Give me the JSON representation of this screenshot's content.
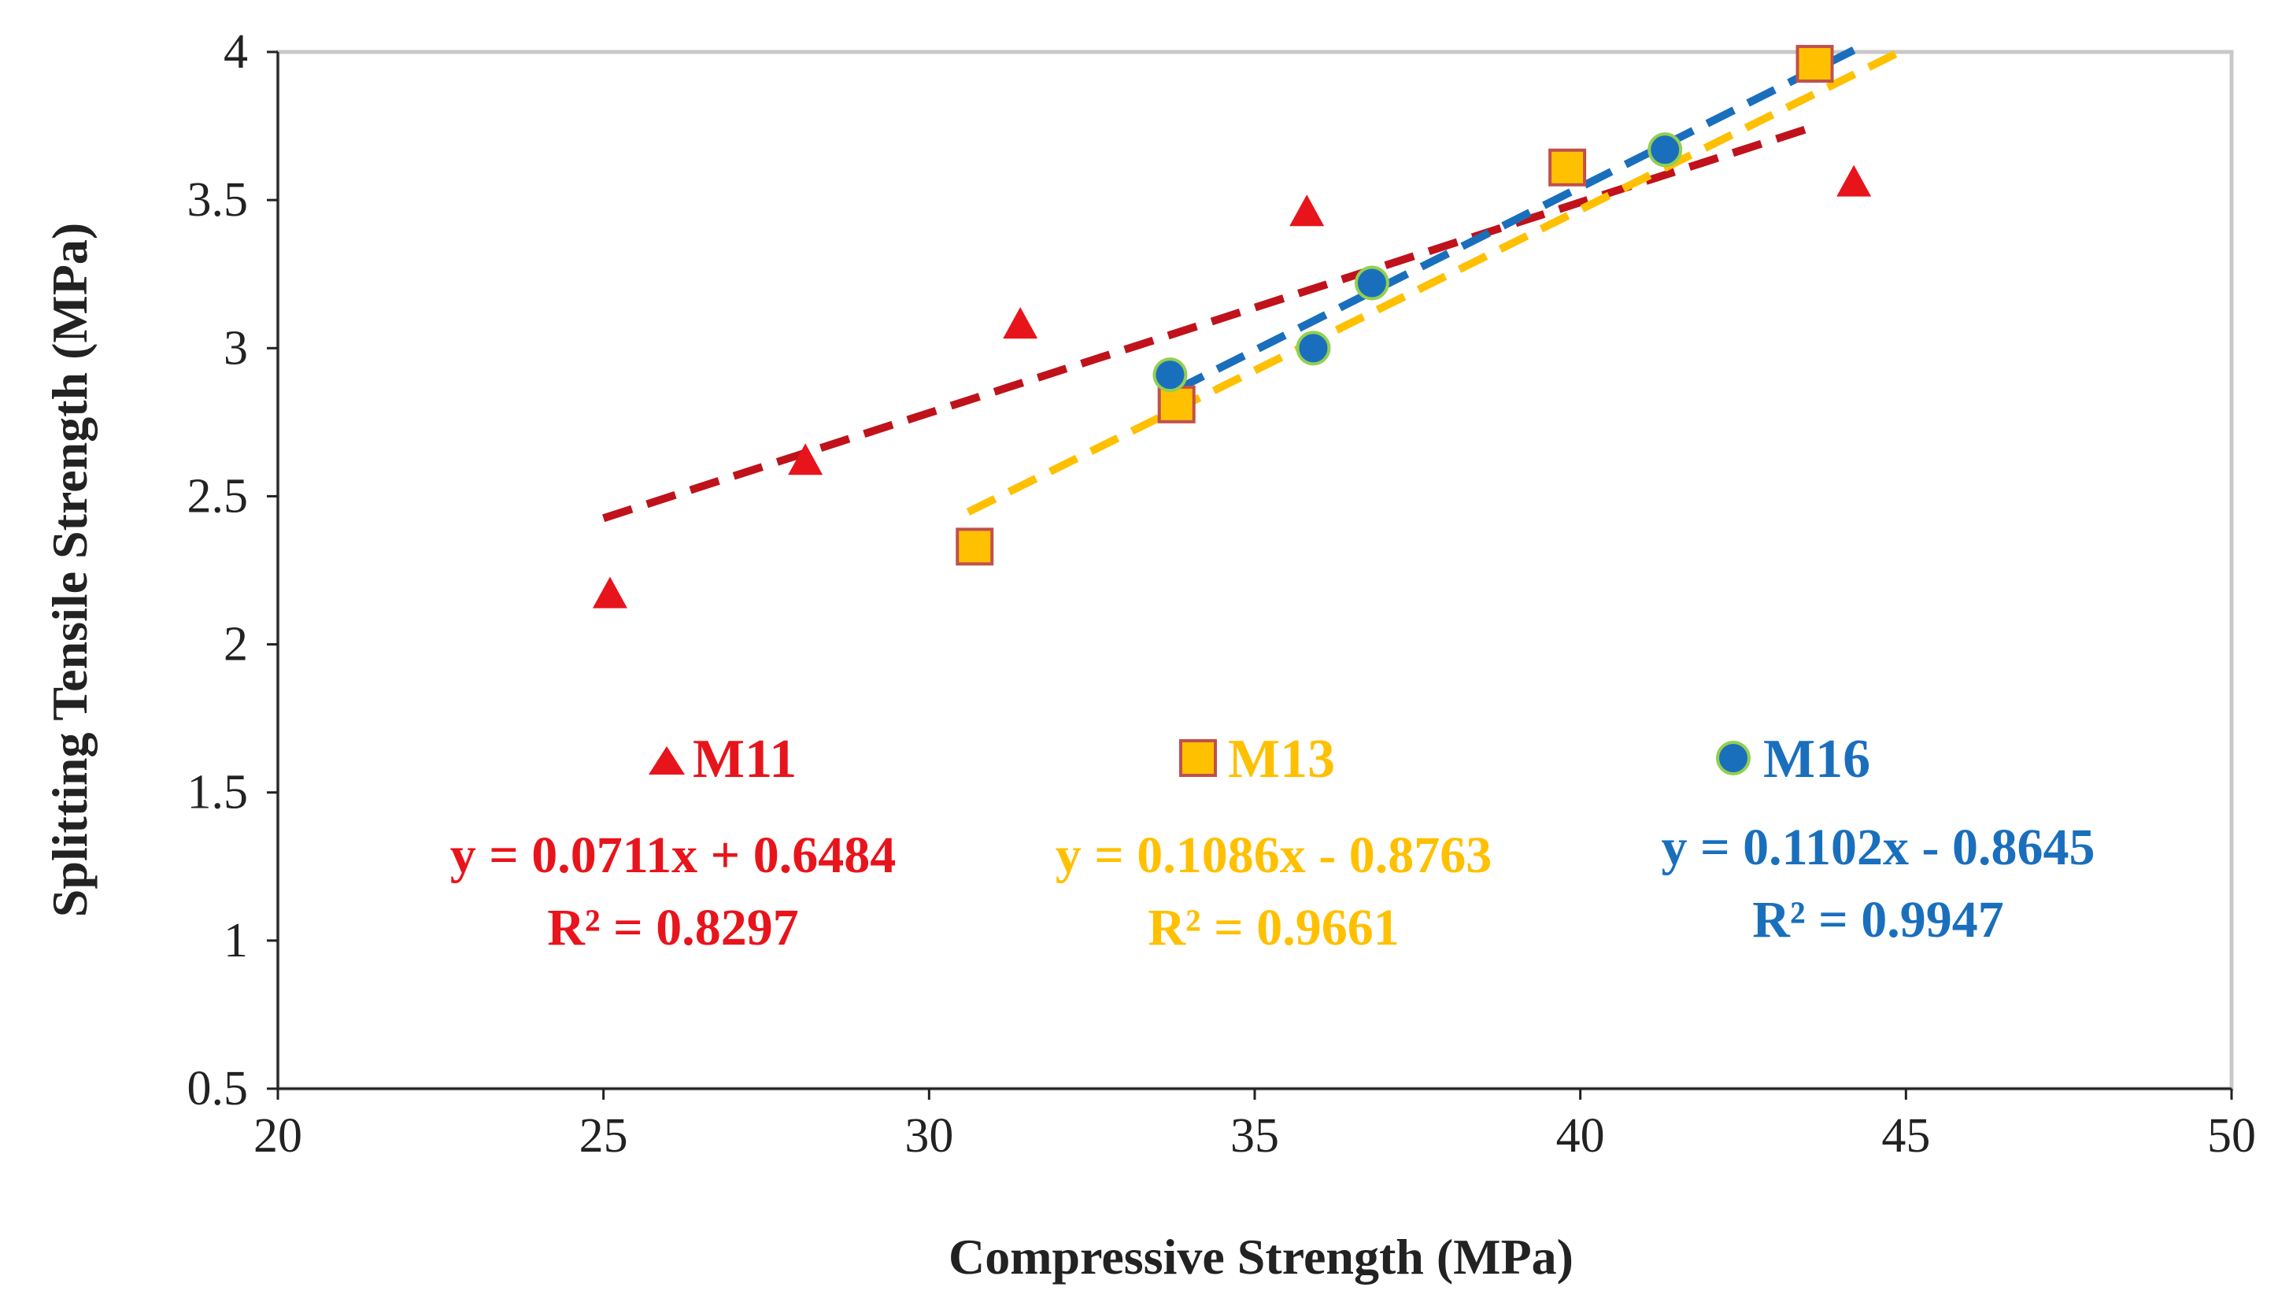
{
  "chart_data": {
    "type": "scatter",
    "xlabel": "Compressive Strength (MPa)",
    "ylabel": "Splitting Tensile Strength (MPa)",
    "xlim": [
      20,
      50
    ],
    "ylim": [
      0.5,
      4
    ],
    "xticks": [
      "20",
      "25",
      "30",
      "35",
      "40",
      "45",
      "50"
    ],
    "yticks": [
      "0.5",
      "1",
      "1.5",
      "2",
      "2.5",
      "3",
      "3.5",
      "4"
    ],
    "grid": false,
    "series": [
      {
        "name": "M11",
        "marker": "triangle",
        "color": "#e8141c",
        "trend_color": "#c0121b",
        "x": [
          25.1,
          28.1,
          31.4,
          35.8,
          44.2
        ],
        "y": [
          2.17,
          2.62,
          3.08,
          3.46,
          3.56
        ],
        "trendline": {
          "slope": 0.0711,
          "intercept": 0.6484,
          "x_range": [
            25.0,
            43.6
          ]
        },
        "equation": "y = 0.0711x + 0.6484",
        "r2": "R² = 0.8297"
      },
      {
        "name": "M13",
        "marker": "square",
        "color": "#ffc000",
        "trend_color": "#ffc000",
        "x": [
          30.7,
          33.8,
          39.8,
          43.6
        ],
        "y": [
          2.33,
          2.81,
          3.61,
          3.96
        ],
        "trendline": {
          "slope": 0.1086,
          "intercept": -0.8763,
          "x_range": [
            30.6,
            45.0
          ]
        },
        "equation": "y = 0.1086x - 0.8763",
        "r2": "R² = 0.9661"
      },
      {
        "name": "M16",
        "marker": "circle",
        "color": "#1a6fbd",
        "trend_color": "#1a6fbd",
        "x": [
          33.7,
          35.9,
          36.8,
          41.3
        ],
        "y": [
          2.91,
          3.0,
          3.22,
          3.67
        ],
        "trendline": {
          "slope": 0.1102,
          "intercept": -0.8645,
          "x_range": [
            33.8,
            44.2
          ]
        },
        "equation": "y = 0.1102x - 0.8645",
        "r2": "R² = 0.9947"
      }
    ]
  }
}
